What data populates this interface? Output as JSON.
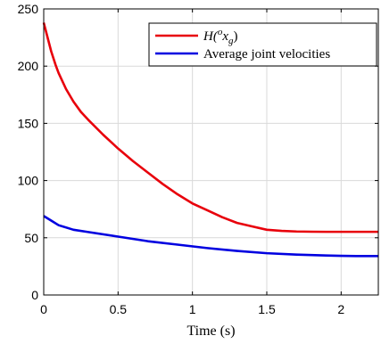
{
  "chart_data": {
    "type": "line",
    "title": "",
    "xlabel": "Time (s)",
    "ylabel": "",
    "xlim": [
      0,
      2.25
    ],
    "ylim": [
      0,
      250
    ],
    "xticks": [
      0,
      0.5,
      1,
      1.5,
      2
    ],
    "xtick_labels": [
      "0",
      "0.5",
      "1",
      "1.5",
      "2"
    ],
    "yticks": [
      0,
      50,
      100,
      150,
      200,
      250
    ],
    "ytick_labels": [
      "0",
      "50",
      "100",
      "150",
      "200",
      "250"
    ],
    "grid": true,
    "legend_position": "top-right",
    "series": [
      {
        "name": "H(°x_g)",
        "legend_parts": {
          "base": "H(",
          "sup": "o",
          "main": "x",
          "sub": "g",
          "close": ")"
        },
        "color": "#e8000b",
        "x": [
          0,
          0.02,
          0.05,
          0.08,
          0.1,
          0.15,
          0.2,
          0.25,
          0.3,
          0.4,
          0.5,
          0.6,
          0.7,
          0.8,
          0.9,
          1.0,
          1.1,
          1.2,
          1.3,
          1.4,
          1.5,
          1.6,
          1.7,
          1.8,
          1.9,
          2.0,
          2.1,
          2.2,
          2.25
        ],
        "y": [
          238,
          228,
          213,
          201,
          194,
          180,
          169,
          160,
          153,
          140,
          128,
          117,
          107,
          97,
          88,
          80,
          74,
          68,
          63,
          60,
          57,
          56,
          55.5,
          55.3,
          55.2,
          55.2,
          55.2,
          55.2,
          55.2
        ]
      },
      {
        "name": "Average joint velocities",
        "color": "#0000e0",
        "x": [
          0,
          0.05,
          0.1,
          0.2,
          0.3,
          0.5,
          0.7,
          0.9,
          1.1,
          1.3,
          1.5,
          1.7,
          1.9,
          2.0,
          2.1,
          2.2,
          2.25
        ],
        "y": [
          69,
          65,
          61,
          57,
          55,
          51,
          47,
          44,
          41,
          38.5,
          36.5,
          35.3,
          34.5,
          34.2,
          34.0,
          34.0,
          34.0
        ]
      }
    ]
  }
}
